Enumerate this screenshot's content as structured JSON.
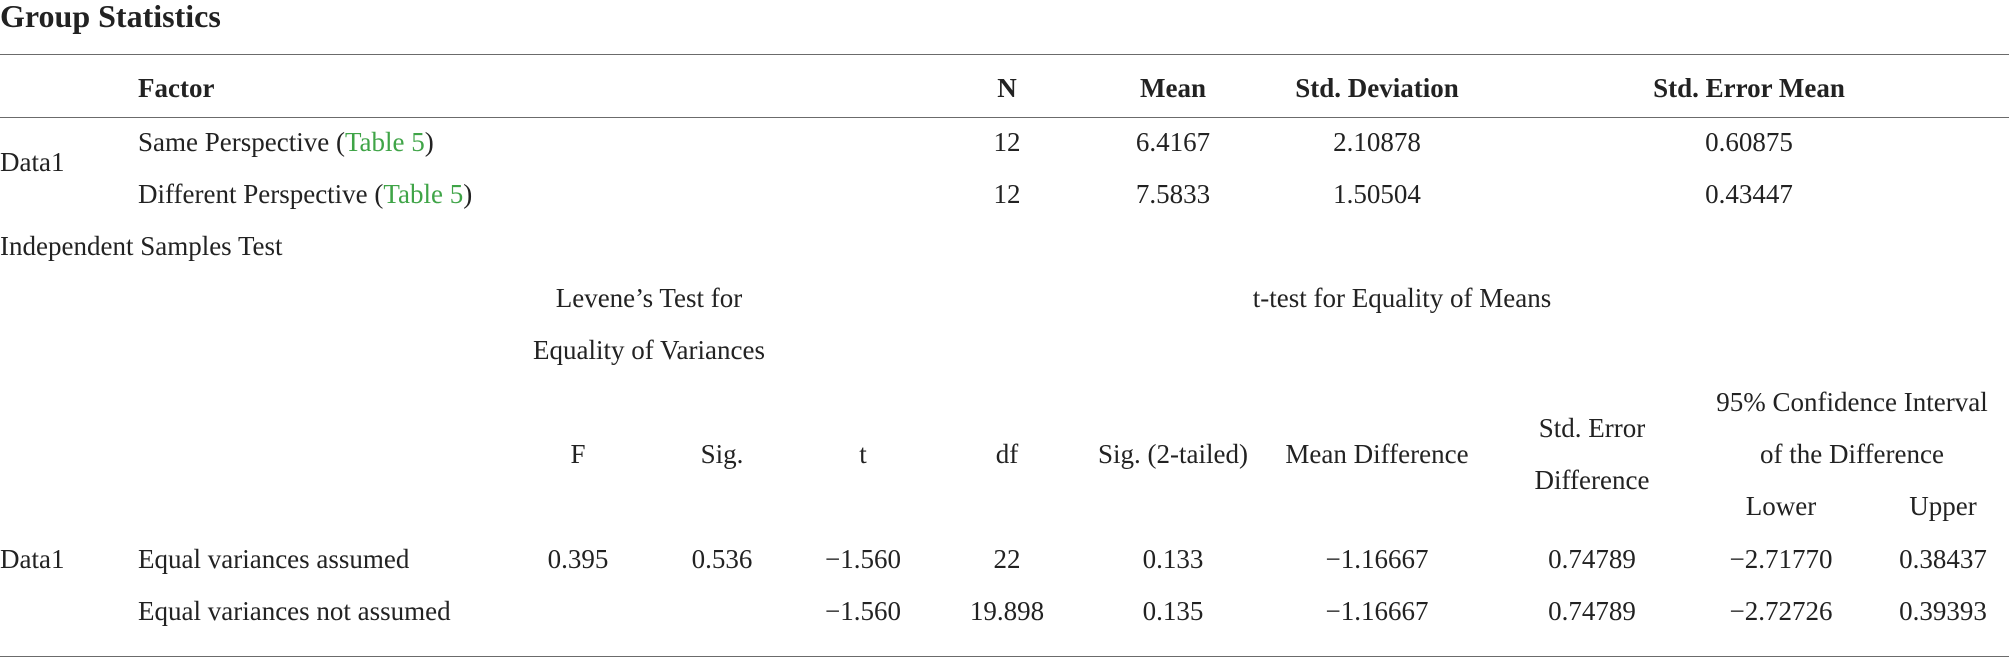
{
  "title": "Group Statistics",
  "group_stats": {
    "headers": {
      "factor": "Factor",
      "n": "N",
      "mean": "Mean",
      "std_dev": "Std. Deviation",
      "std_err": "Std. Error Mean"
    },
    "group_label": "Data1",
    "rows": [
      {
        "factor_text": "Same Perspective (",
        "link": "Table 5",
        "factor_close": ")",
        "n": "12",
        "mean": "6.4167",
        "std_dev": "2.10878",
        "std_err": "0.60875"
      },
      {
        "factor_text": "Different Perspective (",
        "link": "Table 5",
        "factor_close": ")",
        "n": "12",
        "mean": "7.5833",
        "std_dev": "1.50504",
        "std_err": "0.43447"
      }
    ]
  },
  "ind_test": {
    "title": "Independent Samples Test",
    "levene_header_line1": "Levene’s Test for",
    "levene_header_line2": "Equality of Variances",
    "ttest_header": "t-test for Equality of Means",
    "headers": {
      "f": "F",
      "sig": "Sig.",
      "t": "t",
      "df": "df",
      "sig2": "Sig. (2-tailed)",
      "mean_diff": "Mean Difference",
      "std_err_diff_line1": "Std. Error",
      "std_err_diff_line2": "Difference",
      "ci_line1": "95% Confidence Interval",
      "ci_line2": "of the Difference",
      "lower": "Lower",
      "upper": "Upper"
    },
    "group_label": "Data1",
    "rows": [
      {
        "label": "Equal variances assumed",
        "f": "0.395",
        "sig": "0.536",
        "t": "−1.560",
        "df": "22",
        "sig2": "0.133",
        "mean_diff": "−1.16667",
        "std_err_diff": "0.74789",
        "lower": "−2.71770",
        "upper": "0.38437"
      },
      {
        "label": "Equal variances not assumed",
        "f": "",
        "sig": "",
        "t": "−1.560",
        "df": "19.898",
        "sig2": "0.135",
        "mean_diff": "−1.16667",
        "std_err_diff": "0.74789",
        "lower": "−2.72726",
        "upper": "0.39393"
      }
    ]
  }
}
